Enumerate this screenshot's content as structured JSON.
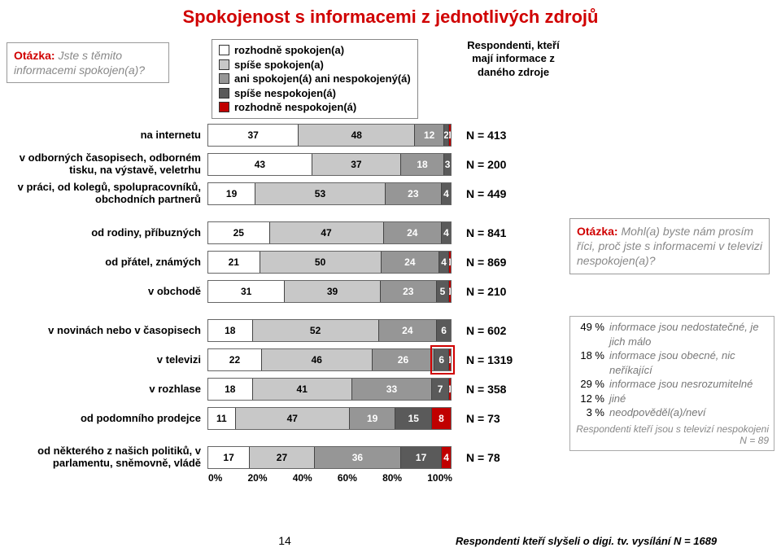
{
  "title": "Spokojenost s informacemi z jednotlivých zdrojů",
  "question1": {
    "label": "Otázka:",
    "text": "Jste s těmito informacemi spokojen(a)?"
  },
  "legend_categories": [
    {
      "label": "rozhodně spokojen(a)",
      "color": "#ffffff"
    },
    {
      "label": "spíše spokojen(a)",
      "color": "#c8c8c8"
    },
    {
      "label": "ani spokojen(á) ani nespokojený(á)",
      "color": "#969696"
    },
    {
      "label": "spíše nespokojen(á)",
      "color": "#5a5a5a"
    },
    {
      "label": "rozhodně nespokojen(á)",
      "color": "#c00000"
    }
  ],
  "resp_header": "Respondenti, kteří mají informace z daného zdroje",
  "chart": {
    "type": "stacked-bar-horizontal",
    "xlim": [
      0,
      100
    ],
    "xtick_labels": [
      "0%",
      "20%",
      "40%",
      "60%",
      "80%",
      "100%"
    ],
    "text_color_light": "#000000",
    "text_color_dark": "#ffffff",
    "groups": [
      {
        "rows": [
          {
            "label": "na internetu",
            "n": "N = 413",
            "segments": [
              37,
              48,
              12,
              2,
              1
            ]
          },
          {
            "label": "v odborných časopisech, odborném tisku, na výstavě, veletrhu",
            "n": "N = 200",
            "segments": [
              43,
              37,
              18,
              3,
              0
            ]
          },
          {
            "label": "v práci, od kolegů, spolupracovníků, obchodních partnerů",
            "n": "N = 449",
            "segments": [
              19,
              53,
              23,
              4,
              0
            ]
          }
        ]
      },
      {
        "rows": [
          {
            "label": "od rodiny, příbuzných",
            "n": "N = 841",
            "segments": [
              25,
              47,
              24,
              4,
              0
            ]
          },
          {
            "label": "od přátel, známých",
            "n": "N = 869",
            "segments": [
              21,
              50,
              24,
              4,
              1
            ]
          },
          {
            "label": "v obchodě",
            "n": "N = 210",
            "segments": [
              31,
              39,
              23,
              5,
              1
            ]
          }
        ]
      },
      {
        "rows": [
          {
            "label": "v novinách nebo v časopisech",
            "n": "N = 602",
            "segments": [
              18,
              52,
              24,
              6,
              0
            ]
          },
          {
            "label": "v televizi",
            "n": "N = 1319",
            "segments": [
              22,
              46,
              26,
              6,
              1
            ],
            "highlight_last2": true
          },
          {
            "label": "v rozhlase",
            "n": "N = 358",
            "segments": [
              18,
              41,
              33,
              7,
              1
            ]
          },
          {
            "label": "od podomního prodejce",
            "n": "N =  73",
            "segments": [
              11,
              47,
              19,
              15,
              8
            ]
          }
        ]
      },
      {
        "rows": [
          {
            "label": "od některého z našich politiků, v parlamentu, sněmovně, vládě",
            "n": "N =  78",
            "segments": [
              17,
              27,
              36,
              17,
              4
            ]
          }
        ]
      }
    ]
  },
  "question2": {
    "label": "Otázka:",
    "text": "Mohl(a) byste nám prosím říci, proč jste s informacemi v televizi nespokojen(a)?"
  },
  "side_stats": {
    "items": [
      {
        "pct": "49 %",
        "text": "informace jsou nedostatečné, je jich málo"
      },
      {
        "pct": "18 %",
        "text": "informace jsou obecné, nic neříkající"
      },
      {
        "pct": "29 %",
        "text": "informace jsou nesrozumitelné"
      },
      {
        "pct": "12 %",
        "text": "jiné"
      },
      {
        "pct": "3 %",
        "text": "neodpověděl(a)/neví"
      }
    ],
    "footer": "Respondenti kteří jsou s televizí nespokojeni N = 89"
  },
  "footer_note": "Respondenti kteří slyšeli o digi. tv. vysílání N = 1689",
  "page_number": "14"
}
